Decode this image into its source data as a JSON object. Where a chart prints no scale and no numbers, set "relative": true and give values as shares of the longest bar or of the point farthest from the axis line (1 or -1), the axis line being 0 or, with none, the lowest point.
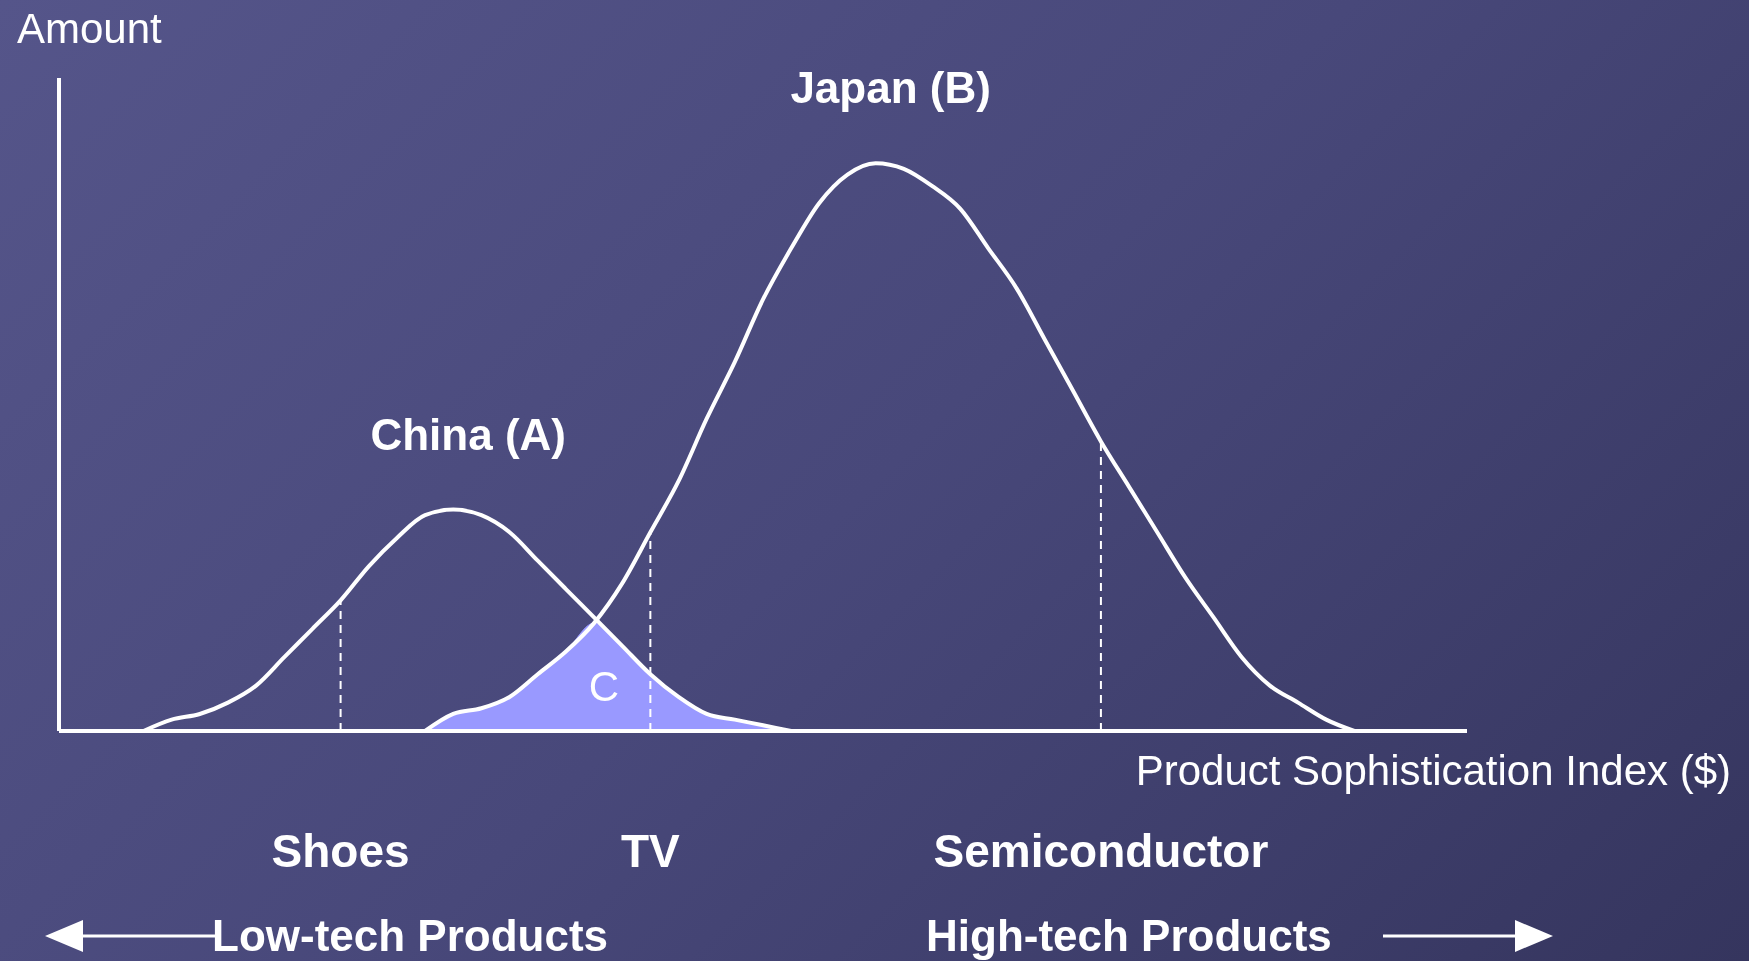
{
  "chart_data": {
    "type": "line",
    "relative": true,
    "xlabel": "Product Sophistication Index ($)",
    "ylabel": "Amount",
    "categories": [
      null,
      null,
      null,
      null,
      null,
      null,
      null,
      null,
      null,
      null,
      "Shoes",
      null,
      null,
      null,
      null,
      null,
      null,
      null,
      null,
      null,
      null,
      "TV",
      null,
      null,
      null,
      null,
      null,
      null,
      null,
      null,
      null,
      null,
      null,
      null,
      null,
      null,
      null,
      "Semiconductor",
      null,
      null,
      null,
      null,
      null,
      null,
      null,
      null,
      null,
      null,
      null,
      null,
      null
    ],
    "series": [
      {
        "name": "C",
        "type": "area",
        "color": "#9999ff",
        "values": [
          null,
          null,
          null,
          null,
          null,
          null,
          null,
          null,
          null,
          null,
          null,
          null,
          null,
          0,
          0.03,
          0.04,
          0.06,
          0.1,
          0.14,
          0.19,
          0.15,
          0.1,
          0.06,
          0.03,
          0.02,
          0.01,
          0,
          null,
          null,
          null,
          null,
          null,
          null,
          null,
          null,
          null,
          null,
          null,
          null,
          null,
          null,
          null,
          null,
          null,
          null,
          null,
          null,
          null,
          null,
          null,
          null
        ]
      },
      {
        "name": "China (A)",
        "color": "#ffffff",
        "values": [
          null,
          null,
          null,
          0,
          0.02,
          0.03,
          0.05,
          0.08,
          0.13,
          0.18,
          0.23,
          0.29,
          0.34,
          0.38,
          0.39,
          0.38,
          0.35,
          0.3,
          0.25,
          0.2,
          0.15,
          0.1,
          0.06,
          0.03,
          0.02,
          0.01,
          0,
          null,
          null,
          null,
          null,
          null,
          null,
          null,
          null,
          null,
          null,
          null,
          null,
          null,
          null,
          null,
          null,
          null,
          null,
          null,
          null,
          null,
          null,
          null,
          null
        ]
      },
      {
        "name": "Japan (B)",
        "color": "#ffffff",
        "values": [
          null,
          null,
          null,
          null,
          null,
          null,
          null,
          null,
          null,
          null,
          null,
          null,
          null,
          0,
          0.03,
          0.04,
          0.06,
          0.1,
          0.14,
          0.19,
          0.26,
          0.35,
          0.44,
          0.55,
          0.65,
          0.76,
          0.85,
          0.93,
          0.98,
          1,
          0.99,
          0.96,
          0.92,
          0.85,
          0.78,
          0.69,
          0.6,
          0.51,
          0.43,
          0.35,
          0.27,
          0.2,
          0.13,
          0.08,
          0.05,
          0.02,
          0,
          null,
          null,
          null,
          null
        ]
      }
    ],
    "ref_lines": [
      {
        "axis": "x",
        "value": "Shoes",
        "line_style": "dashed",
        "color": "#ffffff"
      },
      {
        "axis": "x",
        "value": "TV",
        "line_style": "dashed",
        "color": "#ffffff"
      },
      {
        "axis": "x",
        "value": "Semiconductor",
        "line_style": "dashed",
        "color": "#ffffff"
      }
    ],
    "annotations": [
      "Low-tech Products",
      "High-tech Products"
    ],
    "marker": "none",
    "line_style": "solid",
    "legend": false,
    "grid": false
  }
}
